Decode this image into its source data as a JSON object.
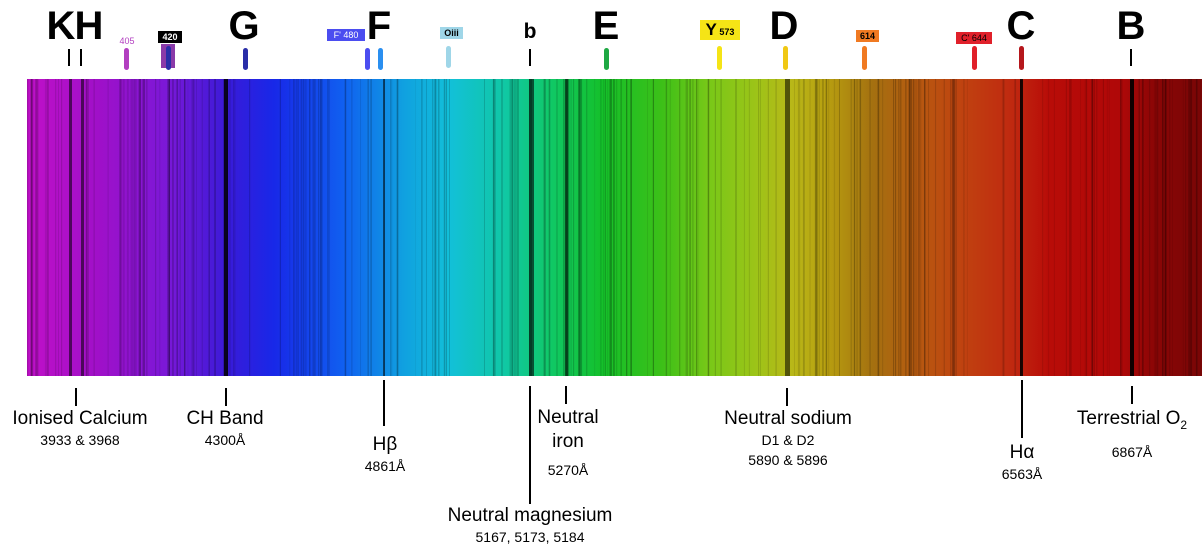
{
  "fraunhofer_letters": {
    "K": "K",
    "H": "H",
    "G": "G",
    "F": "F",
    "b": "b",
    "E": "E",
    "D": "D",
    "C": "C",
    "B": "B"
  },
  "filter_tags": {
    "t405": "405",
    "t420": "420",
    "tF480": "F' 480",
    "tOiii": "Oiii",
    "tY573_letter": "Y",
    "tY573_num": "573",
    "t614": "614",
    "tC644": "C' 644"
  },
  "filter_colors": {
    "405": "#b23fc0",
    "420": "#8a3aa8",
    "G": "#2a2ea8",
    "F480": "#4b4df0",
    "F": "#2a8ff0",
    "Oiii": "#9fd6e8",
    "E": "#1ea843",
    "Y573": "#f5e416",
    "D": "#f0c814",
    "614": "#f07a22",
    "C644": "#e0202a",
    "C": "#b5171c"
  },
  "lines": {
    "ionised_calcium": {
      "name": "Ionised Calcium",
      "value": "3933 & 3968"
    },
    "ch_band": {
      "name": "CH Band",
      "value": "4300Å"
    },
    "h_beta": {
      "name": "Hβ",
      "value": "4861Å"
    },
    "neutral_magnesium": {
      "name": "Neutral magnesium",
      "value": "5167, 5173, 5184"
    },
    "neutral_iron": {
      "name_line1": "Neutral",
      "name_line2": "iron",
      "value": "5270Å"
    },
    "neutral_sodium": {
      "name": "Neutral sodium",
      "value1": "D1 & D2",
      "value2": "5890 & 5896"
    },
    "h_alpha": {
      "name": "Hα",
      "value": "6563Å"
    },
    "terrestrial_o2": {
      "name": "Terrestrial O",
      "subscript": "2",
      "value": "6867Å"
    }
  }
}
